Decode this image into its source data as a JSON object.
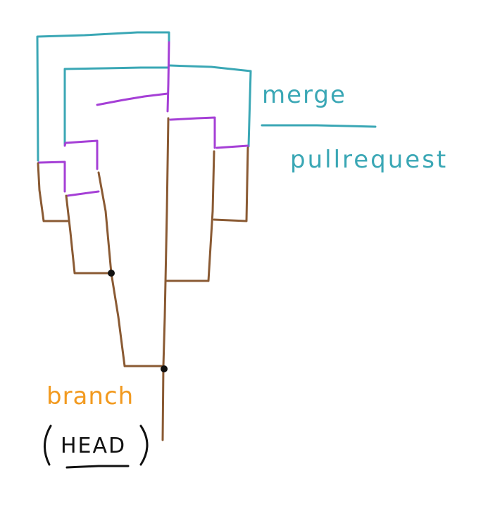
{
  "labels": {
    "merge": "merge",
    "pull_request": "pullrequest",
    "branch": "branch",
    "head": "HEAD"
  },
  "colors": {
    "merge": "#3aa7b5",
    "feature": "#a53fd6",
    "branch": "#8a5a33",
    "label_branch": "#f29a1f",
    "ink": "#111111"
  }
}
